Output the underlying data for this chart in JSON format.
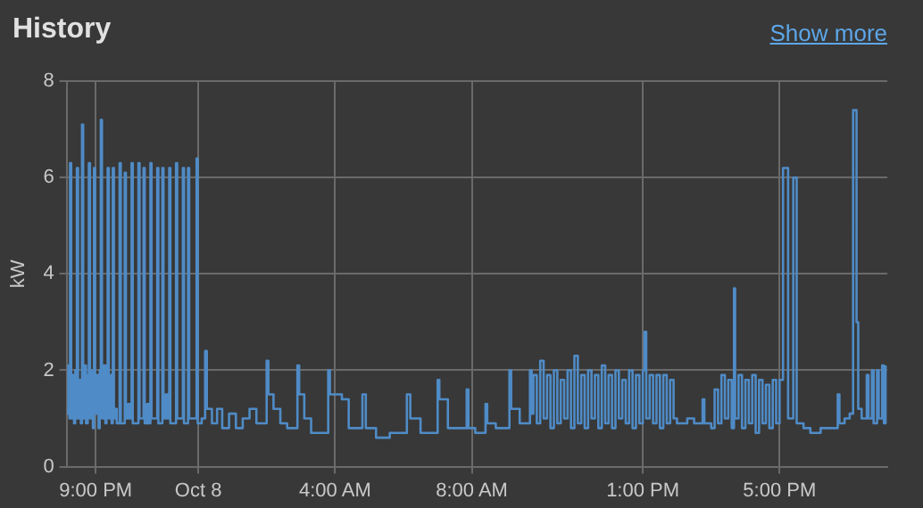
{
  "chart_data": {
    "type": "step",
    "title": "History",
    "ylabel": "kW",
    "annotations": [
      "Show more"
    ],
    "xlim": [
      "--10-07T20:09",
      "--10-08T20:09"
    ],
    "xticks": [
      {
        "value": "--10-07T21:00",
        "label": "9:00 PM"
      },
      {
        "value": "--10-08",
        "label": "Oct 8"
      },
      {
        "value": "--10-08T04:00",
        "label": "4:00 AM"
      },
      {
        "value": "--10-08T08:00",
        "label": "8:00 AM"
      },
      {
        "value": "--10-08T13:00",
        "label": "1:00 PM"
      },
      {
        "value": "--10-08T17:00",
        "label": "5:00 PM"
      }
    ],
    "ylim": [
      0,
      8
    ],
    "yticks": [
      0,
      2,
      4,
      6,
      8
    ],
    "grid": true,
    "legend": false,
    "marker": "none",
    "line_style": "solid",
    "series": [
      {
        "color": "#4f8bc6",
        "x": [
          "--10-07T20:09",
          "--10-07T20:12",
          "--10-07T20:14",
          "--10-07T20:15",
          "--10-07T20:17",
          "--10-07T20:19",
          "--10-07T20:22",
          "--10-07T20:24",
          "--10-07T20:26",
          "--10-07T20:27",
          "--10-07T20:29",
          "--10-07T20:31",
          "--10-07T20:34",
          "--10-07T20:36",
          "--10-07T20:38",
          "--10-07T20:41",
          "--10-07T20:43",
          "--10-07T20:46",
          "--10-07T20:48",
          "--10-07T20:50",
          "--10-07T20:53",
          "--10-07T20:55",
          "--10-07T20:57",
          "--10-07T20:59",
          "--10-07T21:02",
          "--10-07T21:05",
          "--10-07T21:07",
          "--10-07T21:09",
          "--10-07T21:11",
          "--10-07T21:14",
          "--10-07T21:17",
          "--10-07T21:19",
          "--10-07T21:21",
          "--10-07T21:23",
          "--10-07T21:26",
          "--10-07T21:28",
          "--10-07T21:30",
          "--10-07T21:32",
          "--10-07T21:35",
          "--10-07T21:37",
          "--10-07T21:42",
          "--10-07T21:44",
          "--10-07T21:51",
          "--10-07T21:53",
          "--10-07T21:57",
          "--10-07T22:00",
          "--10-07T22:03",
          "--10-07T22:05",
          "--10-07T22:15",
          "--10-07T22:17",
          "--10-07T22:24",
          "--10-07T22:26",
          "--10-07T22:30",
          "--10-07T22:33",
          "--10-07T22:36",
          "--10-07T22:38",
          "--10-07T22:48",
          "--10-07T22:50",
          "--10-07T22:57",
          "--10-07T22:59",
          "--10-07T23:03",
          "--10-07T23:06",
          "--10-07T23:09",
          "--10-07T23:11",
          "--10-07T23:21",
          "--10-07T23:23",
          "--10-07T23:33",
          "--10-07T23:35",
          "--10-07T23:42",
          "--10-07T23:44",
          "--10-07T23:57",
          "--10-07T23:59",
          "--10-08T00:06",
          "--10-08T00:12",
          "--10-08T00:15",
          "--10-08T00:24",
          "--10-08T00:33",
          "--10-08T00:42",
          "--10-08T00:54",
          "--10-08T01:06",
          "--10-08T01:18",
          "--10-08T01:30",
          "--10-08T01:42",
          "--10-08T02:00",
          "--10-08T02:03",
          "--10-08T02:12",
          "--10-08T02:24",
          "--10-08T02:36",
          "--10-08T02:54",
          "--10-08T02:57",
          "--10-08T03:06",
          "--10-08T03:18",
          "--10-08T03:48",
          "--10-08T03:51",
          "--10-08T04:12",
          "--10-08T04:24",
          "--10-08T04:48",
          "--10-08T04:54",
          "--10-08T05:12",
          "--10-08T05:36",
          "--10-08T06:06",
          "--10-08T06:12",
          "--10-08T06:30",
          "--10-08T07:00",
          "--10-08T07:03",
          "--10-08T07:18",
          "--10-08T07:51",
          "--10-08T07:54",
          "--10-08T08:06",
          "--10-08T08:24",
          "--10-08T08:27",
          "--10-08T08:42",
          "--10-08T09:06",
          "--10-08T09:09",
          "--10-08T09:24",
          "--10-08T09:42",
          "--10-08T09:45",
          "--10-08T09:48",
          "--10-08T09:54",
          "--10-08T10:00",
          "--10-08T10:06",
          "--10-08T10:12",
          "--10-08T10:18",
          "--10-08T10:24",
          "--10-08T10:30",
          "--10-08T10:36",
          "--10-08T10:42",
          "--10-08T10:48",
          "--10-08T10:54",
          "--10-08T11:00",
          "--10-08T11:06",
          "--10-08T11:12",
          "--10-08T11:18",
          "--10-08T11:24",
          "--10-08T11:30",
          "--10-08T11:36",
          "--10-08T11:42",
          "--10-08T11:48",
          "--10-08T11:54",
          "--10-08T12:00",
          "--10-08T12:06",
          "--10-08T12:12",
          "--10-08T12:18",
          "--10-08T12:24",
          "--10-08T12:30",
          "--10-08T12:36",
          "--10-08T12:42",
          "--10-08T12:48",
          "--10-08T12:54",
          "--10-08T13:00",
          "--10-08T13:03",
          "--10-08T13:06",
          "--10-08T13:12",
          "--10-08T13:18",
          "--10-08T13:24",
          "--10-08T13:30",
          "--10-08T13:36",
          "--10-08T13:42",
          "--10-08T13:48",
          "--10-08T13:54",
          "--10-08T14:00",
          "--10-08T14:18",
          "--10-08T14:30",
          "--10-08T14:45",
          "--10-08T14:48",
          "--10-08T15:00",
          "--10-08T15:06",
          "--10-08T15:12",
          "--10-08T15:18",
          "--10-08T15:24",
          "--10-08T15:30",
          "--10-08T15:36",
          "--10-08T15:40",
          "--10-08T15:42",
          "--10-08T15:48",
          "--10-08T15:54",
          "--10-08T16:00",
          "--10-08T16:06",
          "--10-08T16:12",
          "--10-08T16:18",
          "--10-08T16:24",
          "--10-08T16:30",
          "--10-08T16:36",
          "--10-08T16:42",
          "--10-08T16:48",
          "--10-08T16:54",
          "--10-08T17:00",
          "--10-08T17:06",
          "--10-08T17:15",
          "--10-08T17:24",
          "--10-08T17:30",
          "--10-08T17:42",
          "--10-08T17:54",
          "--10-08T18:12",
          "--10-08T18:30",
          "--10-08T18:42",
          "--10-08T18:45",
          "--10-08T18:54",
          "--10-08T19:03",
          "--10-08T19:09",
          "--10-08T19:15",
          "--10-08T19:18",
          "--10-08T19:24",
          "--10-08T19:33",
          "--10-08T19:36",
          "--10-08T19:42",
          "--10-08T19:45",
          "--10-08T19:51",
          "--10-08T19:54",
          "--10-08T20:00",
          "--10-08T20:03",
          "--10-08T20:06"
        ],
        "values": [
          1.1,
          2.1,
          1.0,
          6.3,
          1.0,
          1.9,
          0.9,
          2.0,
          1.0,
          6.2,
          1.0,
          1.8,
          0.9,
          7.1,
          1.0,
          2.1,
          0.9,
          1.9,
          6.3,
          1.0,
          2.0,
          0.8,
          6.2,
          1.1,
          1.9,
          0.8,
          2.0,
          7.2,
          1.0,
          2.1,
          0.9,
          1.8,
          6.2,
          1.0,
          1.9,
          0.9,
          6.2,
          1.0,
          1.2,
          0.9,
          6.3,
          0.9,
          6.1,
          1.0,
          1.3,
          1.0,
          6.3,
          0.9,
          6.3,
          1.0,
          6.2,
          0.9,
          1.3,
          0.9,
          6.3,
          1.0,
          6.2,
          0.9,
          6.2,
          1.0,
          1.5,
          1.0,
          6.2,
          0.9,
          6.3,
          1.0,
          6.2,
          0.9,
          6.2,
          1.0,
          6.4,
          0.9,
          1.0,
          2.4,
          1.2,
          0.9,
          1.2,
          0.8,
          1.1,
          0.8,
          1.0,
          1.2,
          0.9,
          2.2,
          1.5,
          1.2,
          0.9,
          0.8,
          2.1,
          1.5,
          1.0,
          0.7,
          2.0,
          1.5,
          1.4,
          0.8,
          1.5,
          0.8,
          0.6,
          0.7,
          1.5,
          1.0,
          0.7,
          1.8,
          1.4,
          0.8,
          1.6,
          0.8,
          0.7,
          1.3,
          0.9,
          0.8,
          2.0,
          1.2,
          0.9,
          2.0,
          1.1,
          1.9,
          0.9,
          2.2,
          1.0,
          1.9,
          0.8,
          2.0,
          0.9,
          1.8,
          1.0,
          2.0,
          0.8,
          2.3,
          0.9,
          1.9,
          0.8,
          2.0,
          1.0,
          1.9,
          0.8,
          2.1,
          0.9,
          1.9,
          0.8,
          2.0,
          1.0,
          1.8,
          0.9,
          2.0,
          0.8,
          1.9,
          0.9,
          2.0,
          2.8,
          1.0,
          1.9,
          0.9,
          1.9,
          0.8,
          1.9,
          0.9,
          1.8,
          1.0,
          0.9,
          1.0,
          0.9,
          1.4,
          0.9,
          0.8,
          1.6,
          0.9,
          1.9,
          1.0,
          1.8,
          0.8,
          3.7,
          1.0,
          1.9,
          0.8,
          1.8,
          0.9,
          1.9,
          0.7,
          1.8,
          0.9,
          1.7,
          0.8,
          1.8,
          0.9,
          1.8,
          6.2,
          1.0,
          6.0,
          0.9,
          0.8,
          0.7,
          0.8,
          0.8,
          1.5,
          0.9,
          1.0,
          1.1,
          7.4,
          3.0,
          1.2,
          1.0,
          1.9,
          1.0,
          2.0,
          0.9,
          2.0,
          1.0,
          2.1,
          0.9,
          2.1
        ]
      }
    ]
  }
}
